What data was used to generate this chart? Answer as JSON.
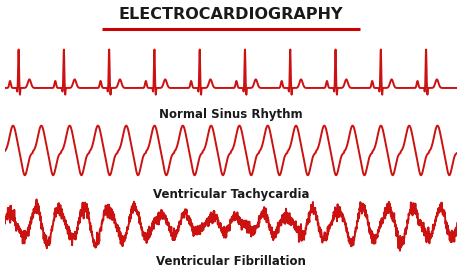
{
  "title": "ELECTROCARDIOGRAPHY",
  "title_color": "#1a1a1a",
  "title_fontsize": 11.5,
  "underline_color": "#cc0000",
  "ecg_color": "#cc1111",
  "ecg_linewidth": 1.4,
  "bg_color": "#ffffff",
  "label_nsr": "Normal Sinus Rhythm",
  "label_vt": "Ventricular Tachycardia",
  "label_vf": "Ventricular Fibrillation",
  "label_fontsize": 8.5,
  "label_fontweight": "bold"
}
